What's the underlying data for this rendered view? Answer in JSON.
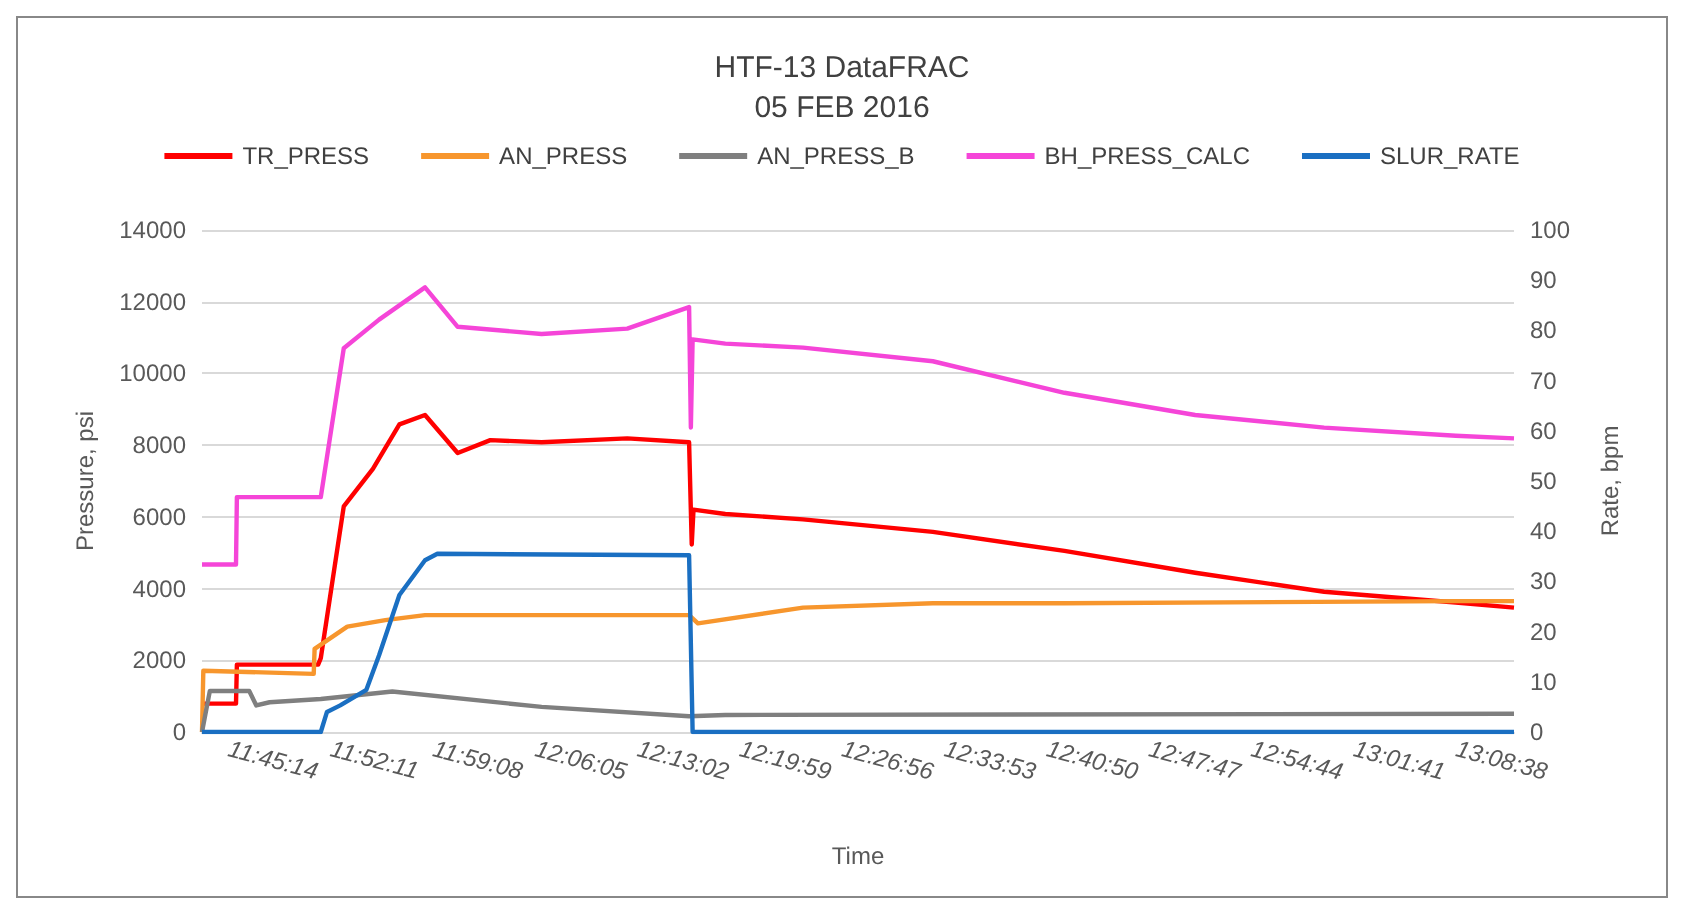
{
  "chart_data": {
    "type": "line",
    "title": "HTF-13 DataFRAC\n05 FEB 2016",
    "xlabel": "Time",
    "ylabel": "Pressure, psi",
    "y2label": "Rate, bpm",
    "xlim": [
      11.7235,
      13.209
    ],
    "xticks": [
      {
        "value": 11.7539,
        "label": "11:45:14"
      },
      {
        "value": 11.8697,
        "label": "11:52:11"
      },
      {
        "value": 11.9856,
        "label": "11:59:08"
      },
      {
        "value": 12.1014,
        "label": "12:06:05"
      },
      {
        "value": 12.2172,
        "label": "12:13:02"
      },
      {
        "value": 12.3331,
        "label": "12:19:59"
      },
      {
        "value": 12.4489,
        "label": "12:26:56"
      },
      {
        "value": 12.5647,
        "label": "12:33:53"
      },
      {
        "value": 12.6806,
        "label": "12:40:50"
      },
      {
        "value": 12.7964,
        "label": "12:47:47"
      },
      {
        "value": 12.9122,
        "label": "12:54:44"
      },
      {
        "value": 13.0281,
        "label": "13:01:41"
      },
      {
        "value": 13.1439,
        "label": "13:08:38"
      }
    ],
    "ylim": [
      0,
      14000
    ],
    "yticks": [
      0,
      2000,
      4000,
      6000,
      8000,
      10000,
      12000,
      14000
    ],
    "y2lim": [
      0,
      100
    ],
    "y2ticks": [
      0,
      10,
      20,
      30,
      40,
      50,
      60,
      70,
      80,
      90,
      100
    ],
    "grid": "y",
    "legend": "top",
    "marker": "none",
    "line_style": "solid",
    "series": [
      {
        "name": "TR_PRESS",
        "color": "#ff0000",
        "x": [
          11.7235,
          11.762,
          11.763,
          11.855,
          11.858,
          11.884,
          11.917,
          11.947,
          11.976,
          12.013,
          12.05,
          12.108,
          12.205,
          12.275,
          12.278,
          12.28,
          12.316,
          12.404,
          12.551,
          12.7,
          12.848,
          12.994,
          13.143,
          13.209
        ],
        "values": [
          790,
          790,
          1880,
          1880,
          2060,
          6290,
          7340,
          8580,
          8840,
          7780,
          8140,
          8080,
          8190,
          8080,
          5230,
          6200,
          6080,
          5930,
          5580,
          5050,
          4440,
          3910,
          3610,
          3470
        ]
      },
      {
        "name": "AN_PRESS",
        "color": "#f7962d",
        "x": [
          11.7235,
          11.725,
          11.85,
          11.851,
          11.888,
          11.931,
          11.976,
          12.275,
          12.285,
          12.404,
          12.551,
          12.7,
          13.143,
          13.209
        ],
        "values": [
          0,
          1710,
          1620,
          2320,
          2940,
          3120,
          3260,
          3260,
          3030,
          3470,
          3590,
          3590,
          3650,
          3650
        ]
      },
      {
        "name": "AN_PRESS_B",
        "color": "#7f7f7f",
        "x": [
          11.7235,
          11.7324,
          11.777,
          11.785,
          11.8,
          11.858,
          11.939,
          12.108,
          12.275,
          12.316,
          13.209
        ],
        "values": [
          0,
          1145,
          1145,
          740,
          830,
          920,
          1130,
          700,
          440,
          475,
          510
        ]
      },
      {
        "name": "BH_PRESS_CALC",
        "color": "#f545d8",
        "x": [
          11.7235,
          11.762,
          11.763,
          11.858,
          11.884,
          11.924,
          11.976,
          12.013,
          12.108,
          12.205,
          12.275,
          12.277,
          12.279,
          12.316,
          12.404,
          12.551,
          12.7,
          12.848,
          12.994,
          13.143,
          13.209
        ],
        "values": [
          4670,
          4670,
          6550,
          6550,
          10700,
          11500,
          12400,
          11300,
          11100,
          11250,
          11850,
          8490,
          10950,
          10830,
          10720,
          10340,
          9460,
          8840,
          8490,
          8260,
          8190
        ]
      },
      {
        "name": "SLUR_RATE",
        "color": "#1a6fc2",
        "axis": "y2",
        "x": [
          11.7235,
          11.858,
          11.865,
          11.88,
          11.9096,
          11.924,
          11.947,
          11.976,
          11.99,
          12.275,
          12.279,
          13.209
        ],
        "values": [
          0,
          0,
          4.0,
          5.3,
          8.4,
          15.3,
          27.3,
          34.2,
          35.5,
          35.2,
          0,
          0
        ]
      }
    ]
  }
}
